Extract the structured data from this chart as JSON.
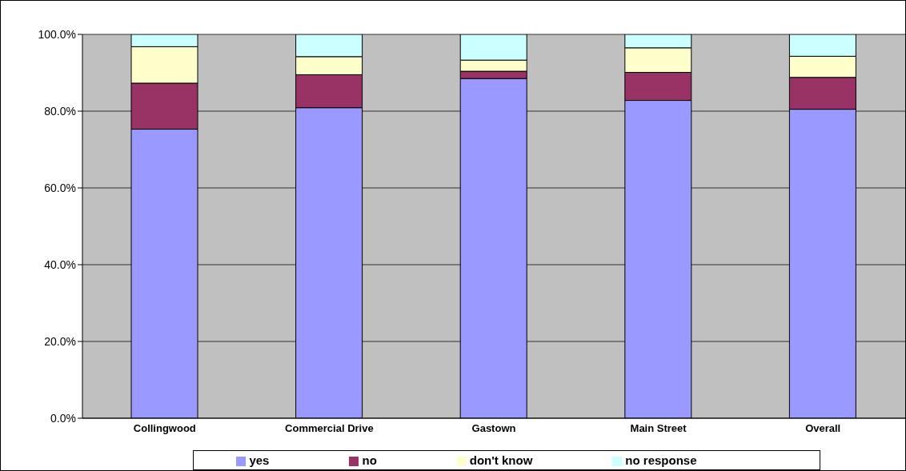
{
  "chart_data": {
    "type": "bar",
    "stacked": true,
    "categories": [
      "Collingwood",
      "Commercial Drive",
      "Gastown",
      "Main Street",
      "Overall"
    ],
    "series": [
      {
        "name": "yes",
        "color": "#9999ff",
        "values": [
          75.3,
          80.9,
          88.5,
          82.8,
          80.5
        ]
      },
      {
        "name": "no",
        "color": "#993366",
        "values": [
          12.0,
          8.6,
          1.9,
          7.3,
          8.3
        ]
      },
      {
        "name": "don't know",
        "color": "#ffffcc",
        "values": [
          9.5,
          4.7,
          2.9,
          6.4,
          5.5
        ]
      },
      {
        "name": "no response",
        "color": "#ccffff",
        "values": [
          3.2,
          5.8,
          6.7,
          3.5,
          5.7
        ]
      }
    ],
    "ylim": [
      0,
      100
    ],
    "yticks": [
      {
        "value": 0,
        "label": "0.0%"
      },
      {
        "value": 20,
        "label": "20.0%"
      },
      {
        "value": 40,
        "label": "40.0%"
      },
      {
        "value": 60,
        "label": "60.0%"
      },
      {
        "value": 80,
        "label": "80.0%"
      },
      {
        "value": 100,
        "label": "100.0%"
      }
    ],
    "grid": "y",
    "legend": "bottom"
  }
}
